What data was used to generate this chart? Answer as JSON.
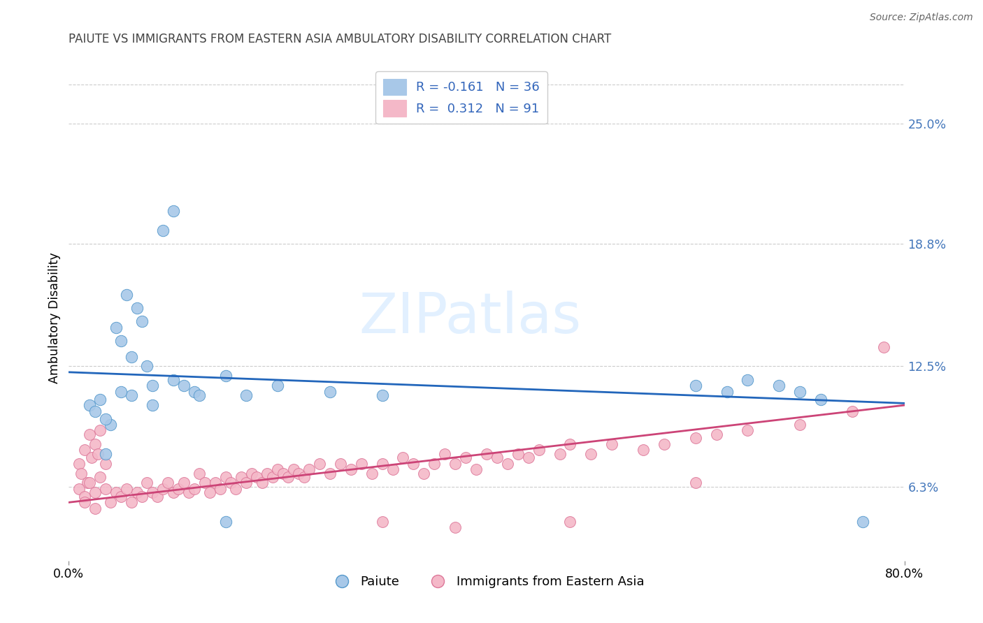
{
  "title": "PAIUTE VS IMMIGRANTS FROM EASTERN ASIA AMBULATORY DISABILITY CORRELATION CHART",
  "source": "Source: ZipAtlas.com",
  "ylabel": "Ambulatory Disability",
  "y_ticks": [
    6.3,
    12.5,
    18.8,
    25.0
  ],
  "x_min": 0.0,
  "x_max": 80.0,
  "y_min": 2.5,
  "y_max": 27.5,
  "legend_label1": "Paiute",
  "legend_label2": "Immigrants from Eastern Asia",
  "blue_color": "#a8c8e8",
  "blue_edge_color": "#5599cc",
  "pink_color": "#f4b8c8",
  "pink_edge_color": "#dd7799",
  "blue_line_color": "#2266bb",
  "pink_line_color": "#cc4477",
  "watermark_text": "ZIPatlas",
  "blue_line_start_y": 12.2,
  "blue_line_end_y": 10.6,
  "pink_line_start_y": 5.5,
  "pink_line_end_y": 10.5,
  "blue_scatter": [
    [
      2.0,
      10.5
    ],
    [
      3.0,
      10.8
    ],
    [
      4.0,
      9.5
    ],
    [
      4.5,
      14.5
    ],
    [
      5.0,
      13.8
    ],
    [
      5.5,
      16.2
    ],
    [
      6.0,
      11.0
    ],
    [
      6.5,
      15.5
    ],
    [
      7.0,
      14.8
    ],
    [
      7.5,
      12.5
    ],
    [
      8.0,
      11.5
    ],
    [
      9.0,
      19.5
    ],
    [
      10.0,
      20.5
    ],
    [
      11.0,
      11.5
    ],
    [
      12.0,
      11.2
    ],
    [
      2.5,
      10.2
    ],
    [
      3.5,
      9.8
    ],
    [
      5.0,
      11.2
    ],
    [
      6.0,
      13.0
    ],
    [
      8.0,
      10.5
    ],
    [
      10.0,
      11.8
    ],
    [
      12.5,
      11.0
    ],
    [
      15.0,
      12.0
    ],
    [
      17.0,
      11.0
    ],
    [
      20.0,
      11.5
    ],
    [
      25.0,
      11.2
    ],
    [
      30.0,
      11.0
    ],
    [
      15.0,
      4.5
    ],
    [
      60.0,
      11.5
    ],
    [
      63.0,
      11.2
    ],
    [
      65.0,
      11.8
    ],
    [
      68.0,
      11.5
    ],
    [
      70.0,
      11.2
    ],
    [
      72.0,
      10.8
    ],
    [
      76.0,
      4.5
    ],
    [
      3.5,
      8.0
    ]
  ],
  "pink_scatter": [
    [
      1.0,
      7.5
    ],
    [
      1.5,
      8.2
    ],
    [
      2.0,
      9.0
    ],
    [
      2.5,
      8.5
    ],
    [
      3.0,
      9.2
    ],
    [
      1.2,
      7.0
    ],
    [
      1.8,
      6.5
    ],
    [
      2.2,
      7.8
    ],
    [
      2.8,
      8.0
    ],
    [
      3.5,
      7.5
    ],
    [
      1.0,
      6.2
    ],
    [
      1.5,
      5.8
    ],
    [
      2.0,
      6.5
    ],
    [
      2.5,
      6.0
    ],
    [
      3.0,
      6.8
    ],
    [
      3.5,
      6.2
    ],
    [
      4.0,
      5.5
    ],
    [
      4.5,
      6.0
    ],
    [
      5.0,
      5.8
    ],
    [
      5.5,
      6.2
    ],
    [
      6.0,
      5.5
    ],
    [
      6.5,
      6.0
    ],
    [
      7.0,
      5.8
    ],
    [
      7.5,
      6.5
    ],
    [
      8.0,
      6.0
    ],
    [
      8.5,
      5.8
    ],
    [
      9.0,
      6.2
    ],
    [
      9.5,
      6.5
    ],
    [
      10.0,
      6.0
    ],
    [
      10.5,
      6.2
    ],
    [
      11.0,
      6.5
    ],
    [
      11.5,
      6.0
    ],
    [
      12.0,
      6.2
    ],
    [
      12.5,
      7.0
    ],
    [
      13.0,
      6.5
    ],
    [
      13.5,
      6.0
    ],
    [
      14.0,
      6.5
    ],
    [
      14.5,
      6.2
    ],
    [
      15.0,
      6.8
    ],
    [
      15.5,
      6.5
    ],
    [
      16.0,
      6.2
    ],
    [
      16.5,
      6.8
    ],
    [
      17.0,
      6.5
    ],
    [
      17.5,
      7.0
    ],
    [
      18.0,
      6.8
    ],
    [
      18.5,
      6.5
    ],
    [
      19.0,
      7.0
    ],
    [
      19.5,
      6.8
    ],
    [
      20.0,
      7.2
    ],
    [
      20.5,
      7.0
    ],
    [
      21.0,
      6.8
    ],
    [
      21.5,
      7.2
    ],
    [
      22.0,
      7.0
    ],
    [
      22.5,
      6.8
    ],
    [
      23.0,
      7.2
    ],
    [
      24.0,
      7.5
    ],
    [
      25.0,
      7.0
    ],
    [
      26.0,
      7.5
    ],
    [
      27.0,
      7.2
    ],
    [
      28.0,
      7.5
    ],
    [
      29.0,
      7.0
    ],
    [
      30.0,
      7.5
    ],
    [
      31.0,
      7.2
    ],
    [
      32.0,
      7.8
    ],
    [
      33.0,
      7.5
    ],
    [
      34.0,
      7.0
    ],
    [
      35.0,
      7.5
    ],
    [
      36.0,
      8.0
    ],
    [
      37.0,
      7.5
    ],
    [
      38.0,
      7.8
    ],
    [
      39.0,
      7.2
    ],
    [
      40.0,
      8.0
    ],
    [
      41.0,
      7.8
    ],
    [
      42.0,
      7.5
    ],
    [
      43.0,
      8.0
    ],
    [
      44.0,
      7.8
    ],
    [
      45.0,
      8.2
    ],
    [
      47.0,
      8.0
    ],
    [
      48.0,
      8.5
    ],
    [
      50.0,
      8.0
    ],
    [
      52.0,
      8.5
    ],
    [
      55.0,
      8.2
    ],
    [
      57.0,
      8.5
    ],
    [
      60.0,
      8.8
    ],
    [
      62.0,
      9.0
    ],
    [
      65.0,
      9.2
    ],
    [
      70.0,
      9.5
    ],
    [
      75.0,
      10.2
    ],
    [
      78.0,
      13.5
    ],
    [
      30.0,
      4.5
    ],
    [
      37.0,
      4.2
    ],
    [
      48.0,
      4.5
    ],
    [
      60.0,
      6.5
    ],
    [
      1.5,
      5.5
    ],
    [
      2.5,
      5.2
    ]
  ]
}
